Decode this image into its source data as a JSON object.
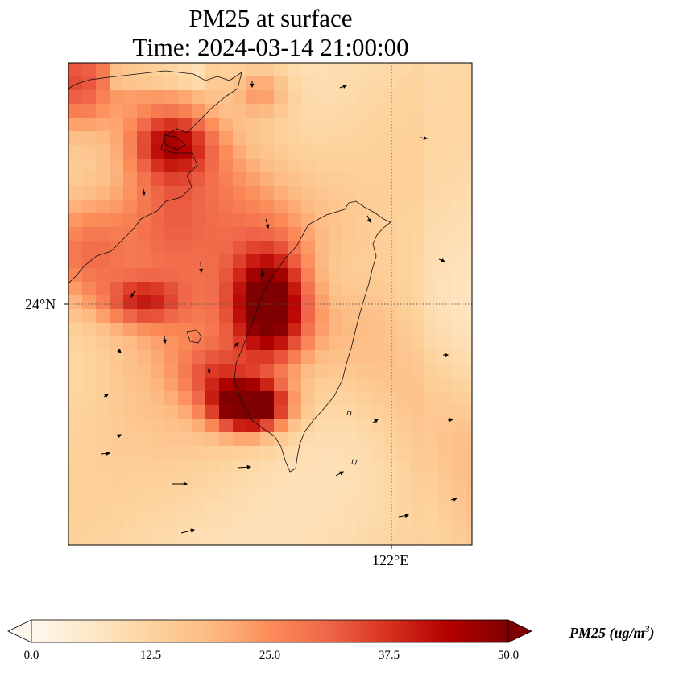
{
  "title": "PM25 at surface",
  "subtitle": "Time: 2024-03-14 21:00:00",
  "map": {
    "lat_label": "24°N",
    "lon_label": "122°E",
    "region": "Taiwan and Fujian coast",
    "colormap": "OrRd",
    "field_max_ug_m3": 50
  },
  "colorbar": {
    "ticks": [
      "0.0",
      "12.5",
      "25.0",
      "37.5",
      "50.0"
    ],
    "label_var": "PM25",
    "label_unit": "(ug/m",
    "label_exp": "3",
    "label_close": ")",
    "vmin": 0,
    "vmax": 50,
    "extend": "both",
    "colors": [
      "#fff7ec",
      "#fee8c8",
      "#fdd49e",
      "#fdbb84",
      "#fc8d59",
      "#ef6548",
      "#d7301f",
      "#b30000",
      "#7f0000"
    ]
  },
  "wind_vectors": {
    "shown": true,
    "icon": "arrow-icon"
  }
}
